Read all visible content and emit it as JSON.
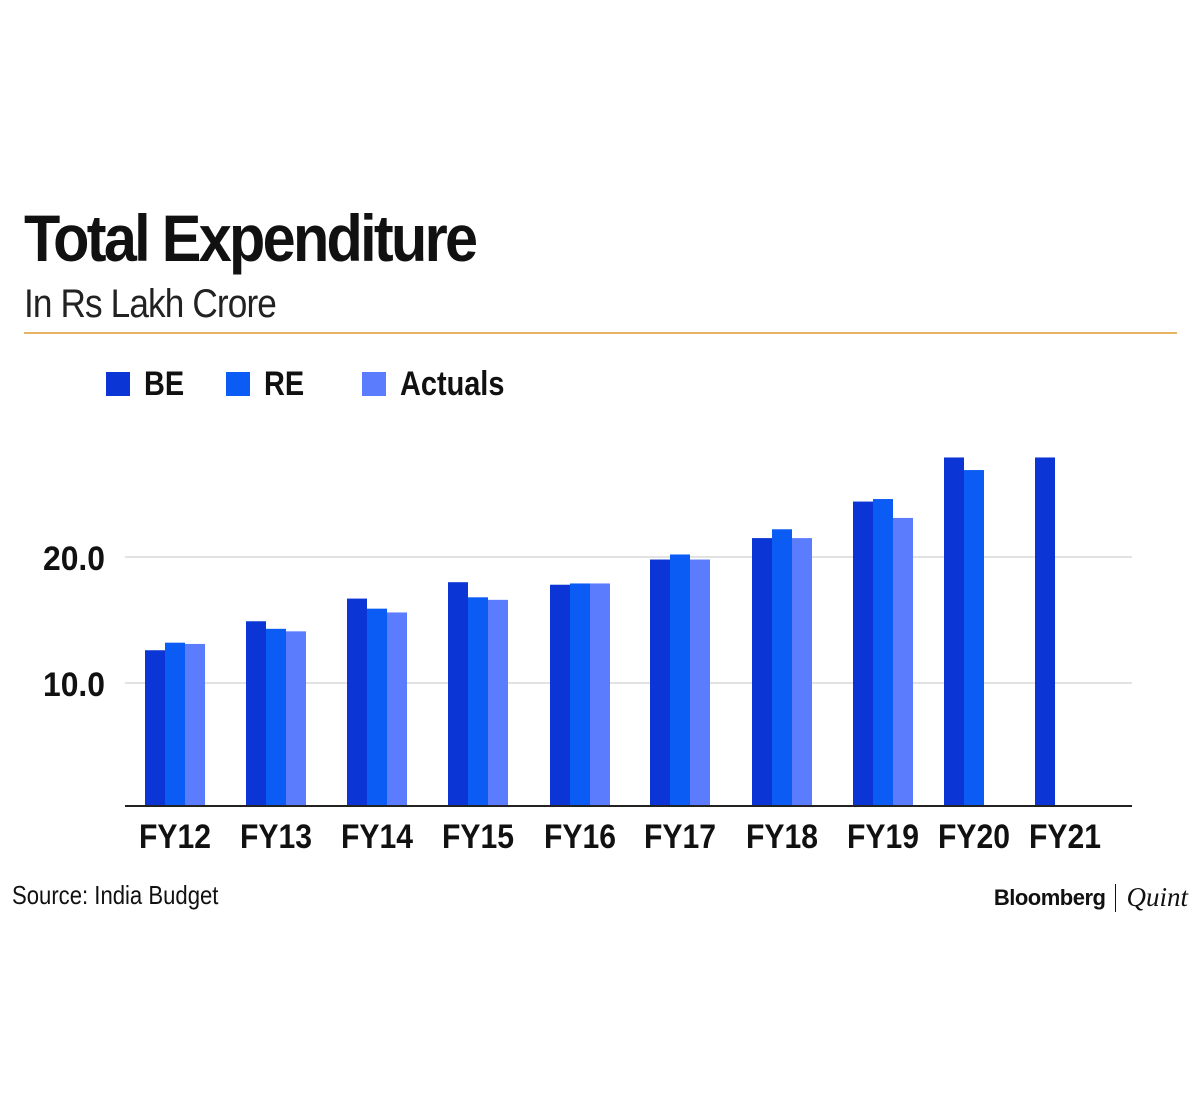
{
  "title": "Total Expenditure",
  "subtitle": "In Rs Lakh Crore",
  "source": "Source: India Budget",
  "brand": {
    "primary": "Bloomberg",
    "secondary": "Quint"
  },
  "colors": {
    "accent_rule": "#e6b464",
    "grid": "#d9d9d9",
    "axis": "#222222"
  },
  "chart_data": {
    "type": "bar",
    "title": "Total Expenditure",
    "subtitle": "In Rs Lakh Crore",
    "xlabel": "",
    "ylabel": "",
    "categories": [
      "FY12",
      "FY13",
      "FY14",
      "FY15",
      "FY16",
      "FY17",
      "FY18",
      "FY19",
      "FY20",
      "FY21"
    ],
    "series": [
      {
        "name": "BE",
        "color": "#0b35d4",
        "values": [
          12.6,
          14.9,
          16.7,
          18.0,
          17.8,
          19.8,
          21.5,
          24.4,
          27.9,
          27.9
        ]
      },
      {
        "name": "RE",
        "color": "#0a5cf5",
        "values": [
          13.2,
          14.3,
          15.9,
          16.8,
          17.9,
          20.2,
          22.2,
          24.6,
          26.9,
          null
        ]
      },
      {
        "name": "Actuals",
        "color": "#5b7dfd",
        "values": [
          13.1,
          14.1,
          15.6,
          16.6,
          17.9,
          19.8,
          21.5,
          23.1,
          null,
          null
        ]
      }
    ],
    "yticks": [
      10.0,
      20.0
    ],
    "ytick_labels": [
      "10.0",
      "20.0"
    ],
    "ylim": [
      0,
      30
    ],
    "grid": true,
    "legend": "top-left"
  }
}
